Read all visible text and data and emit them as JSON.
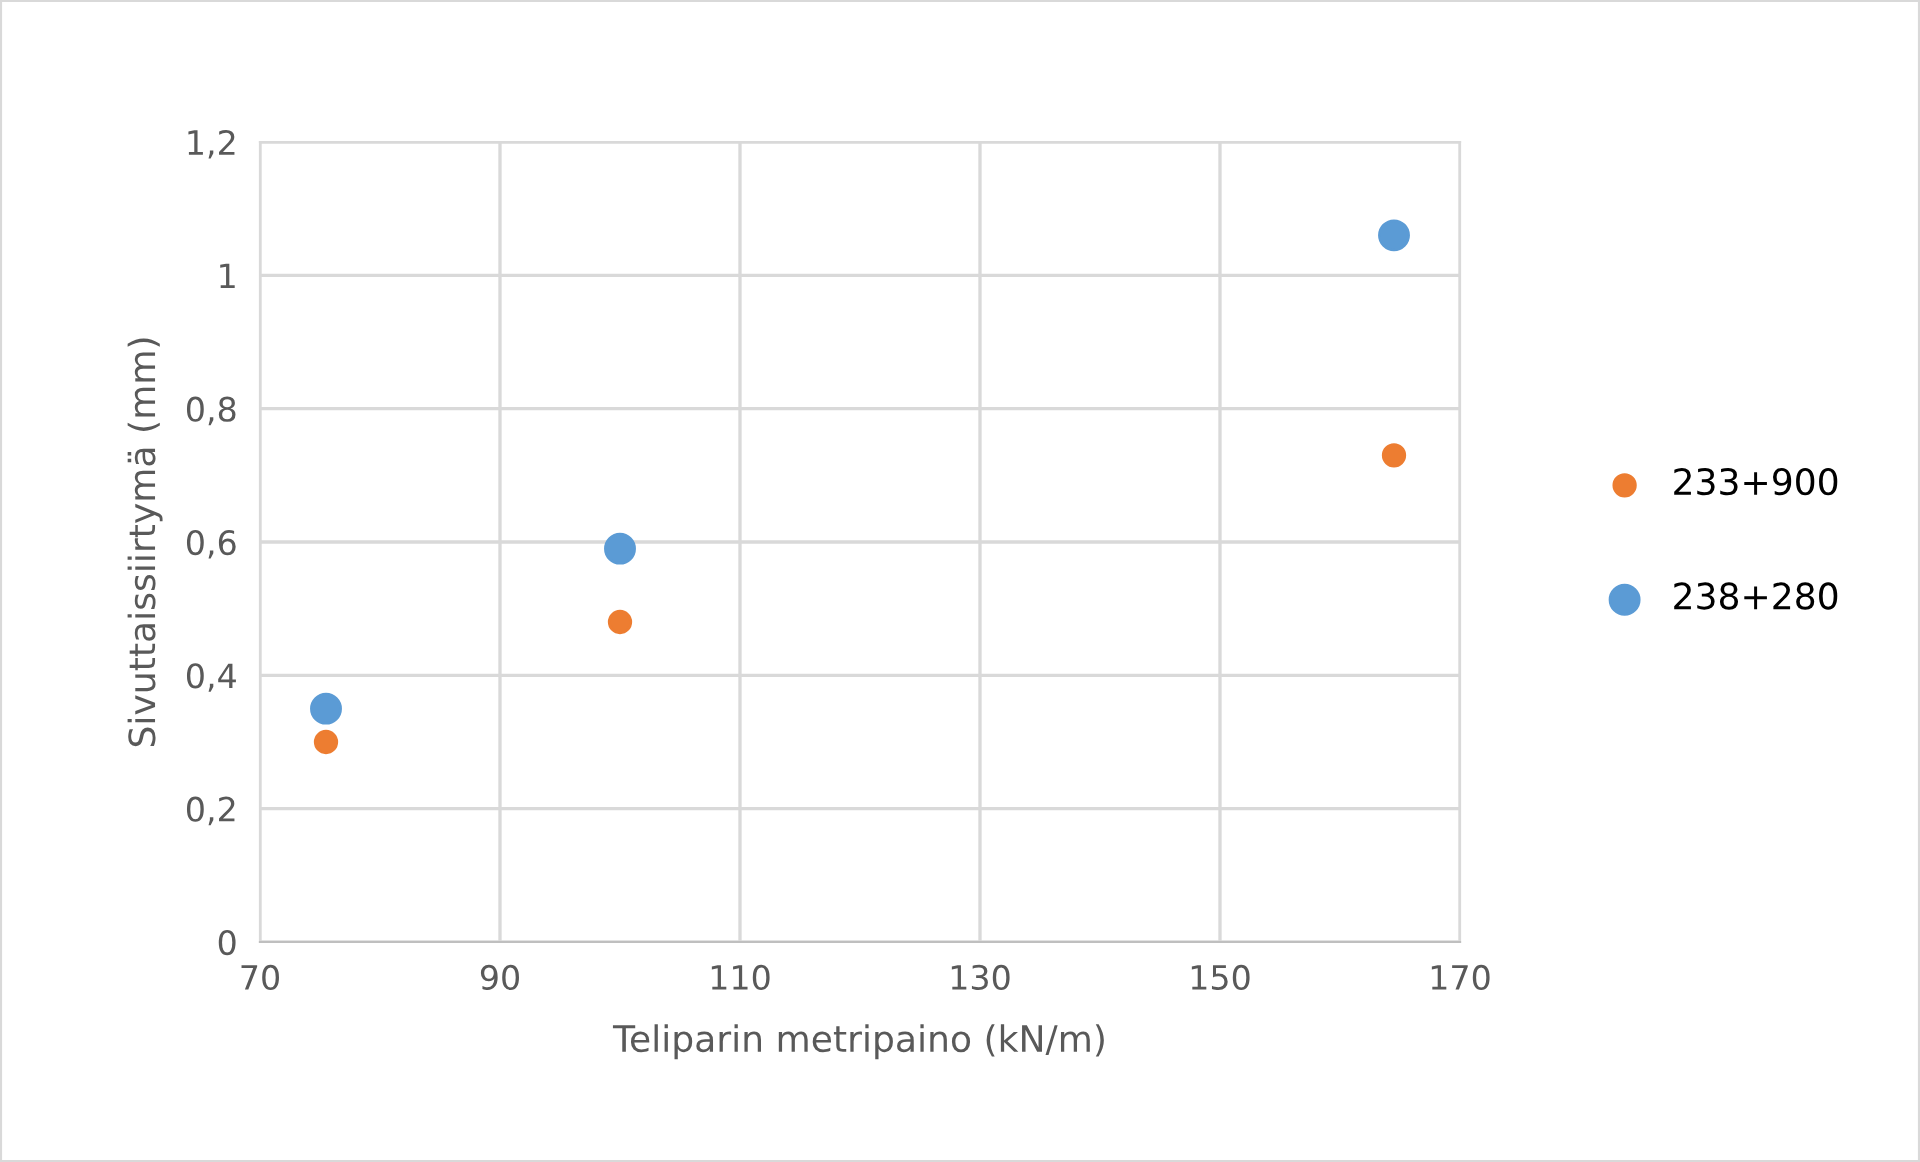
{
  "chart_data": {
    "type": "scatter",
    "xlabel": "Teliparin metripaino (kN/m)",
    "ylabel": "Sivuttaissiirtymä (mm)",
    "series": [
      {
        "name": "233+900",
        "color": "#ed7d31",
        "x": [
          75.5,
          100,
          164.5
        ],
        "values": [
          0.3,
          0.48,
          0.73
        ]
      },
      {
        "name": "238+280",
        "color": "#5b9bd5",
        "x": [
          75.5,
          100,
          164.5
        ],
        "values": [
          0.35,
          0.59,
          1.06
        ]
      }
    ],
    "xlim": [
      70,
      170
    ],
    "xticks": [
      70,
      90,
      110,
      130,
      150,
      170
    ],
    "ylim": [
      0,
      1.2
    ],
    "yticks": [
      0,
      {
        "value": 0.2,
        "label": "0,2"
      },
      {
        "value": 0.4,
        "label": "0,4"
      },
      {
        "value": 0.6,
        "label": "0,6"
      },
      {
        "value": 0.8,
        "label": "0,8"
      },
      1,
      {
        "value": 1.2,
        "label": "1,2"
      }
    ],
    "grid": true,
    "legend": "right",
    "marker": "circle"
  }
}
